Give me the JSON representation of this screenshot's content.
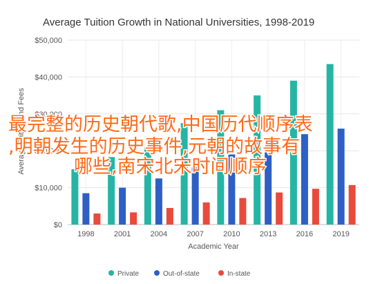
{
  "chart_data": {
    "type": "bar",
    "title": "Average Tuition Growth in National Universities, 1998-2019",
    "xlabel": "Academic Year",
    "ylabel": "Average Tuition and Fees",
    "categories": [
      "1998",
      "2001",
      "2004",
      "2007",
      "2010",
      "2013",
      "2016",
      "2019"
    ],
    "series": [
      {
        "name": "Private",
        "color": "#26b5a4",
        "values": [
          15000,
          18300,
          21000,
          27500,
          31000,
          35000,
          39000,
          43500
        ]
      },
      {
        "name": "Out-of-state",
        "color": "#2e5fc4",
        "values": [
          8500,
          10000,
          12500,
          15500,
          19000,
          22000,
          24500,
          26000
        ]
      },
      {
        "name": "In-state",
        "color": "#e84b3c",
        "values": [
          3000,
          3300,
          4500,
          6000,
          7200,
          8700,
          9700,
          10700
        ]
      }
    ],
    "ylim": [
      0,
      50000
    ],
    "yticks": [
      "$0",
      "$10,000",
      "$20,000",
      "$30,000",
      "$40,000",
      "$50,000"
    ],
    "grid": true,
    "legend": "bottom"
  },
  "overlay": {
    "lines": [
      "最完整的历史朝代歌,中国历代顺序表",
      ",明朝发生的历史事件,元朝的故事有",
      "哪些,南宋北宋时间顺序"
    ]
  }
}
